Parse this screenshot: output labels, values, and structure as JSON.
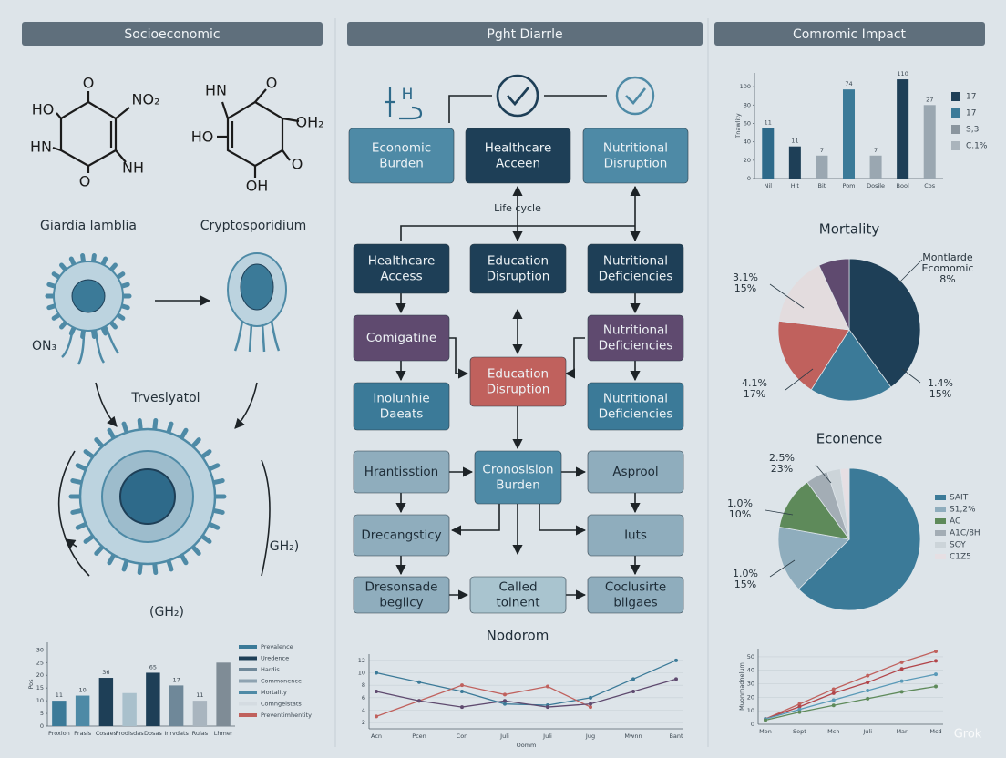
{
  "headers": [
    "Socioeconomic",
    "Pght Diarrle",
    "Comromic Impact"
  ],
  "molecules": [
    {
      "labels": [
        "O",
        "NO₂",
        "HO",
        "HN",
        "NH",
        "O"
      ]
    },
    {
      "labels": [
        "HN",
        "O",
        "OH₂",
        "HO",
        "O",
        "OH"
      ]
    }
  ],
  "organisms": [
    "Giardia lamblia",
    "Cryptosporidium"
  ],
  "cell_labels": [
    "Trveslyatol",
    "ON₃",
    "GH₂)",
    "(GH₂)"
  ],
  "left_chart": {
    "type": "bar",
    "y_label": "Pos",
    "categories": [
      "Proxion",
      "Prasis",
      "Cosaes",
      "Prodisdas",
      "Dosas",
      "Inrvdats",
      "Rulas",
      "Lhmer"
    ],
    "values": [
      10,
      12,
      19,
      13,
      21,
      16,
      10,
      25
    ],
    "colors": [
      "#3b7a98",
      "#4e8aa6",
      "#1e3f57",
      "#a9c0cc",
      "#1e3f57",
      "#6f8899",
      "#a9b5bf",
      "#7f8c96"
    ],
    "bar_annotations": [
      "11",
      "10",
      "36",
      null,
      "65",
      "17",
      "11",
      null
    ],
    "ylim": [
      0,
      33
    ],
    "yticks": [
      0,
      5,
      10,
      15,
      20,
      25,
      30
    ],
    "legend": [
      {
        "name": "Prevalence",
        "color": "#3b7a98"
      },
      {
        "name": "Uredence",
        "color": "#1e3f57"
      },
      {
        "name": "Hardis",
        "color": "#6f8899"
      },
      {
        "name": "Commonence",
        "color": "#8fa3b1"
      },
      {
        "name": "Mortality",
        "color": "#4e8aa6"
      },
      {
        "name": "Comngelstats",
        "color": "#d4dbe1"
      },
      {
        "name": "Preventimhentity",
        "color": "#c0615d"
      }
    ]
  },
  "flow": {
    "icon_text": "H",
    "subtitle": "Life cycle",
    "footer": "Nodorom",
    "nodes": [
      {
        "lines": [
          "Economic",
          "Burden"
        ],
        "color": "#4e8aa6"
      },
      {
        "lines": [
          "Healthcare",
          "Acceen"
        ],
        "color": "#1e3f57"
      },
      {
        "lines": [
          "Nutritional",
          "Disruption"
        ],
        "color": "#4e8aa6"
      },
      {
        "lines": [
          "Healthcare",
          "Access"
        ],
        "color": "#1e3f57"
      },
      {
        "lines": [
          "Education",
          "Disruption"
        ],
        "color": "#1e3f57"
      },
      {
        "lines": [
          "Nutritional",
          "Deficiencies"
        ],
        "color": "#1e3f57"
      },
      {
        "lines": [
          "Comigatine"
        ],
        "color": "#5f4a6f"
      },
      {
        "lines": [
          "Nutritional",
          "Deficiencies"
        ],
        "color": "#5f4a6f"
      },
      {
        "lines": [
          "Education",
          "Disruption"
        ],
        "color": "#c0615d"
      },
      {
        "lines": [
          "Inolunhie",
          "Daeats"
        ],
        "color": "#3b7a98"
      },
      {
        "lines": [
          "Nutritional",
          "Deficiencies"
        ],
        "color": "#3b7a98"
      },
      {
        "lines": [
          "Hrantisstion"
        ],
        "color": "#8fadbd"
      },
      {
        "lines": [
          "Cronosision",
          "Burden"
        ],
        "color": "#4e8aa6"
      },
      {
        "lines": [
          "Asprool"
        ],
        "color": "#8fadbd"
      },
      {
        "lines": [
          "Drecangsticy"
        ],
        "color": "#8fadbd"
      },
      {
        "lines": [
          "Iuts"
        ],
        "color": "#8fadbd"
      },
      {
        "lines": [
          "Dresonsade",
          "begiicy"
        ],
        "color": "#8fadbd"
      },
      {
        "lines": [
          "Called",
          "tolnent"
        ],
        "color": "#a9c4cf"
      },
      {
        "lines": [
          "Coclusirte",
          "biigaes"
        ],
        "color": "#8fadbd"
      }
    ]
  },
  "center_line_chart": {
    "type": "line",
    "x_label": "Oomm",
    "categories": [
      "Acn",
      "Pcen",
      "Con",
      "Juli",
      "Juli",
      "Jug",
      "Mwnn",
      "Bant"
    ],
    "ylim": [
      1,
      13
    ],
    "yticks": [
      2,
      4,
      6,
      8,
      10,
      12
    ],
    "series": [
      {
        "color": "#3b7a98",
        "values": [
          10,
          8.5,
          7,
          5,
          4.8,
          6,
          9,
          12
        ]
      },
      {
        "color": "#c0615d",
        "values": [
          3,
          5.5,
          8,
          6.5,
          7.8,
          4.5,
          null,
          null
        ]
      },
      {
        "color": "#5f4a6f",
        "values": [
          7,
          5.5,
          4.5,
          5.5,
          4.5,
          5,
          7,
          9
        ]
      }
    ]
  },
  "bar_chart": {
    "type": "bar",
    "y_label": "Tnawlity",
    "categories": [
      "Nil",
      "Hit",
      "Bit",
      "Pom",
      "Dosile",
      "Bool",
      "Cos"
    ],
    "values": [
      55,
      35,
      25,
      97,
      25,
      108,
      80
    ],
    "colors": [
      "#2e6a8a",
      "#1e3f57",
      "#9aa7b1",
      "#3b7a98",
      "#9aa7b1",
      "#1e3f57",
      "#9aa7b1"
    ],
    "bar_annotations": [
      "11",
      "11",
      "7",
      "74",
      "7",
      "110",
      "27"
    ],
    "ylim": [
      0,
      115
    ],
    "yticks": [
      0,
      20,
      40,
      60,
      80,
      100
    ],
    "legend": [
      {
        "name": "17",
        "color": "#1e3f57"
      },
      {
        "name": "17",
        "color": "#3b7a98"
      },
      {
        "name": "S,3",
        "color": "#8a959e"
      },
      {
        "name": "C.1%",
        "color": "#aab4bc"
      }
    ]
  },
  "mortality": {
    "type": "pie",
    "title": "Mortality",
    "values": [
      40,
      19,
      18,
      16,
      7
    ],
    "colors": [
      "#1e3f57",
      "#3b7a98",
      "#c0615d",
      "#e3dcde",
      "#5f4a6f"
    ],
    "annotations": [
      [
        "Montlarde",
        "Ecomomic",
        "8%"
      ],
      [
        "3.1%",
        "15%"
      ],
      [
        "4.1%",
        "17%"
      ],
      [
        "1.4%",
        "15%"
      ]
    ]
  },
  "econence": {
    "type": "pie",
    "title": "Econence",
    "values": [
      62,
      15,
      12,
      5,
      3,
      2
    ],
    "colors": [
      "#3b7a98",
      "#8fadbd",
      "#5e8a5a",
      "#a3adb5",
      "#ccd4d9",
      "#e6dfe3"
    ],
    "legend": [
      "SAIT",
      "S1,2%",
      "AC",
      "A1C/8H",
      "SOY",
      "C1Z5"
    ],
    "annotations": [
      [
        "2.5%",
        "23%"
      ],
      [
        "1.0%",
        "10%"
      ],
      [
        "1.0%",
        "15%"
      ]
    ]
  },
  "right_line_chart": {
    "type": "line",
    "y_label": "Muonmadnelum",
    "categories": [
      "Mon",
      "Sept",
      "Mch",
      "Juli",
      "Mar",
      "Mcd"
    ],
    "ylim": [
      0,
      56
    ],
    "yticks": [
      0,
      10,
      20,
      30,
      40,
      50
    ],
    "series": [
      {
        "color": "#c0615d",
        "values": [
          4,
          15,
          26,
          36,
          46,
          54
        ]
      },
      {
        "color": "#b2454a",
        "values": [
          4,
          13,
          23,
          31,
          41,
          47
        ]
      },
      {
        "color": "#5a9ab8",
        "values": [
          4,
          11,
          18,
          25,
          32,
          37
        ]
      },
      {
        "color": "#5e8a5a",
        "values": [
          3,
          9,
          14,
          19,
          24,
          28
        ]
      }
    ]
  },
  "watermark": "Grok"
}
